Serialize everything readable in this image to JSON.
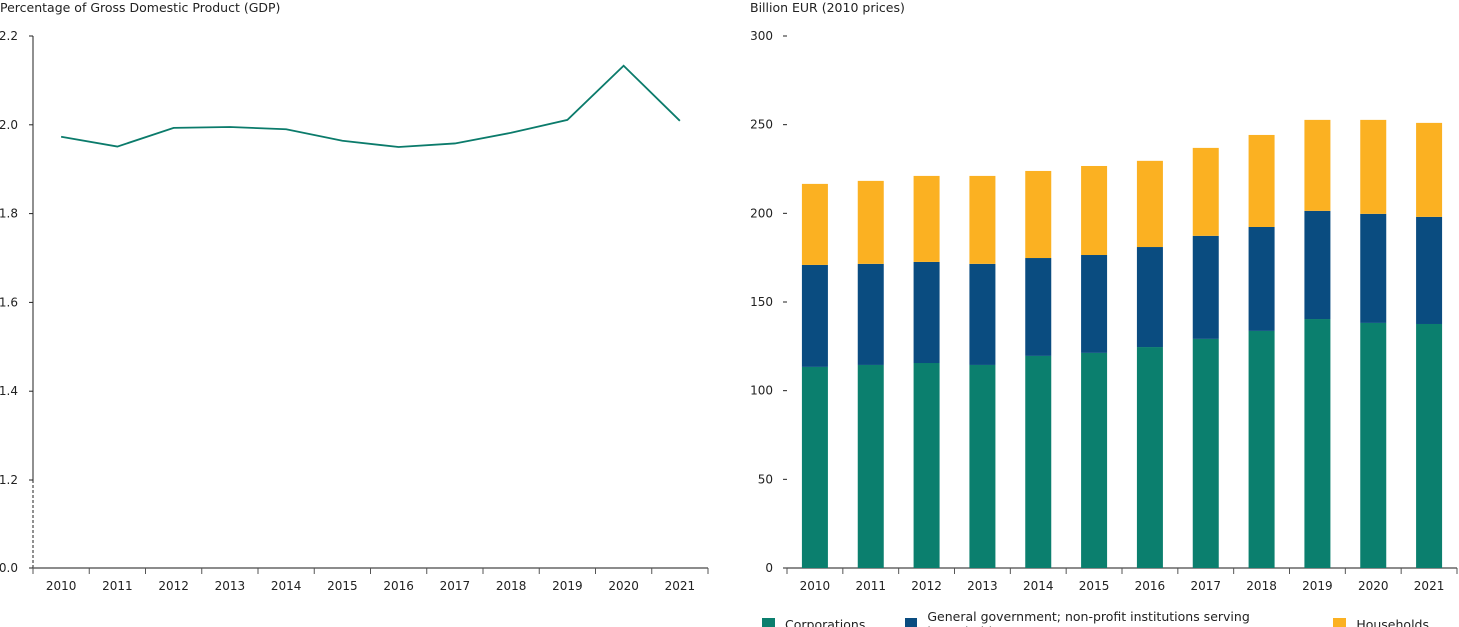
{
  "chart_data": [
    {
      "type": "line",
      "ylabel": "Percentage of Gross Domestic Product (GDP)",
      "categories": [
        "2010",
        "2011",
        "2012",
        "2013",
        "2014",
        "2015",
        "2016",
        "2017",
        "2018",
        "2019",
        "2020",
        "2021"
      ],
      "values": [
        1.973,
        1.951,
        1.993,
        1.995,
        1.99,
        1.964,
        1.95,
        1.958,
        1.982,
        2.011,
        2.133,
        2.009
      ],
      "yticks": [
        "0.0",
        "1.2",
        "1.4",
        "1.6",
        "1.8",
        "2.0",
        "2.2"
      ],
      "ylim": [
        0,
        2.2
      ],
      "axis_break": [
        0,
        1.2
      ],
      "color": "#0b7b6b",
      "grid": false
    },
    {
      "type": "bar",
      "stacked": true,
      "ylabel": "Billion EUR (2010 prices)",
      "categories": [
        "2010",
        "2011",
        "2012",
        "2013",
        "2014",
        "2015",
        "2016",
        "2017",
        "2018",
        "2019",
        "2020",
        "2021"
      ],
      "yticks": [
        "0",
        "50",
        "100",
        "150",
        "200",
        "250",
        "300"
      ],
      "ylim": [
        0,
        300
      ],
      "grid": false,
      "legend_position": "bottom",
      "series": [
        {
          "name": "Corporations",
          "color": "#0b7f6e",
          "values": [
            113.4,
            114.5,
            115.6,
            114.5,
            119.6,
            121.3,
            124.6,
            129.2,
            133.7,
            140.4,
            138.2,
            137.6
          ]
        },
        {
          "name": "General government; non-profit institutions serving households",
          "color": "#0a4c80",
          "values": [
            57.5,
            57.0,
            57.0,
            57.0,
            55.2,
            55.2,
            56.4,
            58.1,
            58.6,
            61.0,
            61.5,
            60.4
          ]
        },
        {
          "name": "Households",
          "color": "#fbb122",
          "values": [
            45.7,
            46.8,
            48.5,
            49.6,
            49.1,
            50.2,
            48.6,
            49.6,
            51.9,
            51.3,
            53.0,
            53.0
          ]
        }
      ]
    }
  ]
}
